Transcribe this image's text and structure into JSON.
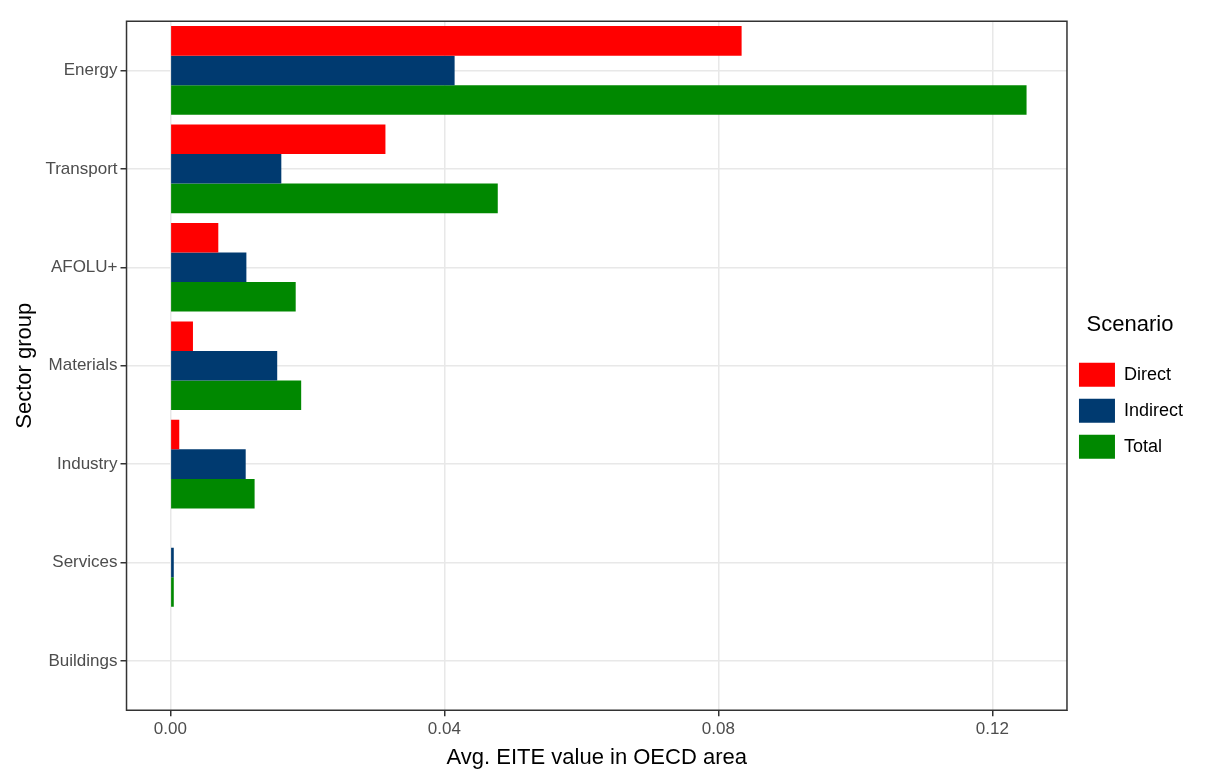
{
  "chart_data": {
    "type": "bar",
    "orientation": "horizontal",
    "xlabel": "Avg. EITE value in OECD area",
    "ylabel": "Sector group",
    "legend_title": "Scenario",
    "categories": [
      "Energy",
      "Transport",
      "AFOLU+",
      "Materials",
      "Industry",
      "Services",
      "Buildings"
    ],
    "series": [
      {
        "name": "Direct",
        "color": "#ff0000",
        "values": [
          0.0834,
          0.0314,
          0.007,
          0.0033,
          0.0013,
          0,
          0
        ]
      },
      {
        "name": "Indirect",
        "color": "#003a70",
        "values": [
          0.0415,
          0.0162,
          0.0111,
          0.0156,
          0.011,
          0.0005,
          null
        ]
      },
      {
        "name": "Total",
        "color": "#008800",
        "values": [
          0.125,
          0.0478,
          0.0183,
          0.0191,
          0.0123,
          0.0005,
          null
        ]
      }
    ],
    "xlim": [
      -0.0064,
      0.1309
    ],
    "xticks": [
      {
        "value": 0,
        "label": "0.00"
      },
      {
        "value": 0.04,
        "label": "0.04"
      },
      {
        "value": 0.08,
        "label": "0.08"
      },
      {
        "value": 0.12,
        "label": "0.12"
      }
    ],
    "grid": true,
    "legend": "right"
  }
}
